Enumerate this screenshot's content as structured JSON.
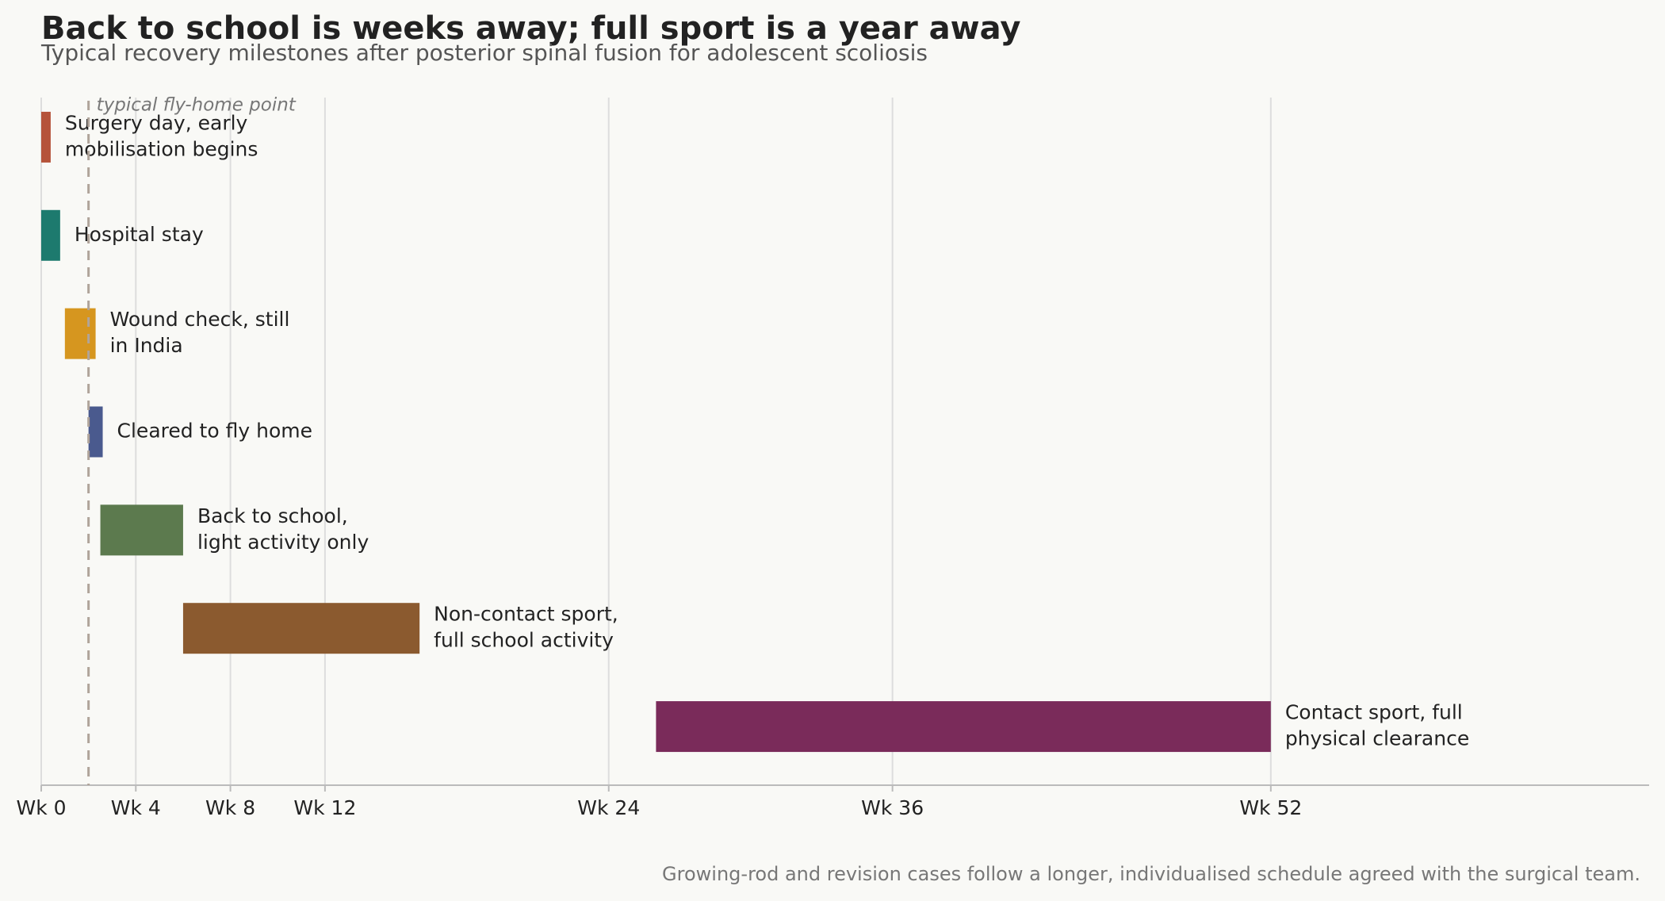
{
  "chart_data": {
    "type": "gantt",
    "title": "Back to school is weeks away; full sport is a year away",
    "subtitle": "Typical recovery milestones after posterior spinal fusion for adolescent scoliosis",
    "tasks": [
      {
        "name": "Surgery day, early\nmobilisation begins",
        "start": 0,
        "end": 0.4,
        "color": "#b5533a"
      },
      {
        "name": "Hospital stay",
        "start": 0,
        "end": 0.8,
        "color": "#1d7a6e"
      },
      {
        "name": "Wound check, still\nin India",
        "start": 1,
        "end": 2.3,
        "color": "#d6961f"
      },
      {
        "name": "Cleared to fly home",
        "start": 2,
        "end": 2.6,
        "color": "#4a5a8e"
      },
      {
        "name": "Back to school,\nlight activity only",
        "start": 2.5,
        "end": 6,
        "color": "#5c7a4e"
      },
      {
        "name": "Non-contact sport,\nfull school activity",
        "start": 6,
        "end": 16,
        "color": "#8b5a2f"
      },
      {
        "name": "Contact sport, full\nphysical clearance",
        "start": 26,
        "end": 52,
        "color": "#7a2b5a"
      }
    ],
    "xlim": [
      0,
      68
    ],
    "xticks": [
      {
        "value": 0,
        "label": "Wk 0"
      },
      {
        "value": 4,
        "label": "Wk 4"
      },
      {
        "value": 8,
        "label": "Wk 8"
      },
      {
        "value": 12,
        "label": "Wk 12"
      },
      {
        "value": 24,
        "label": "Wk 24"
      },
      {
        "value": 36,
        "label": "Wk 36"
      },
      {
        "value": 52,
        "label": "Wk 52"
      }
    ],
    "grid": true,
    "reference_line": {
      "value": 2,
      "label": "typical fly-home point",
      "color": "#b0a49a"
    },
    "footnote": "Growing-rod and revision cases follow a longer, individualised schedule agreed with the surgical team."
  }
}
